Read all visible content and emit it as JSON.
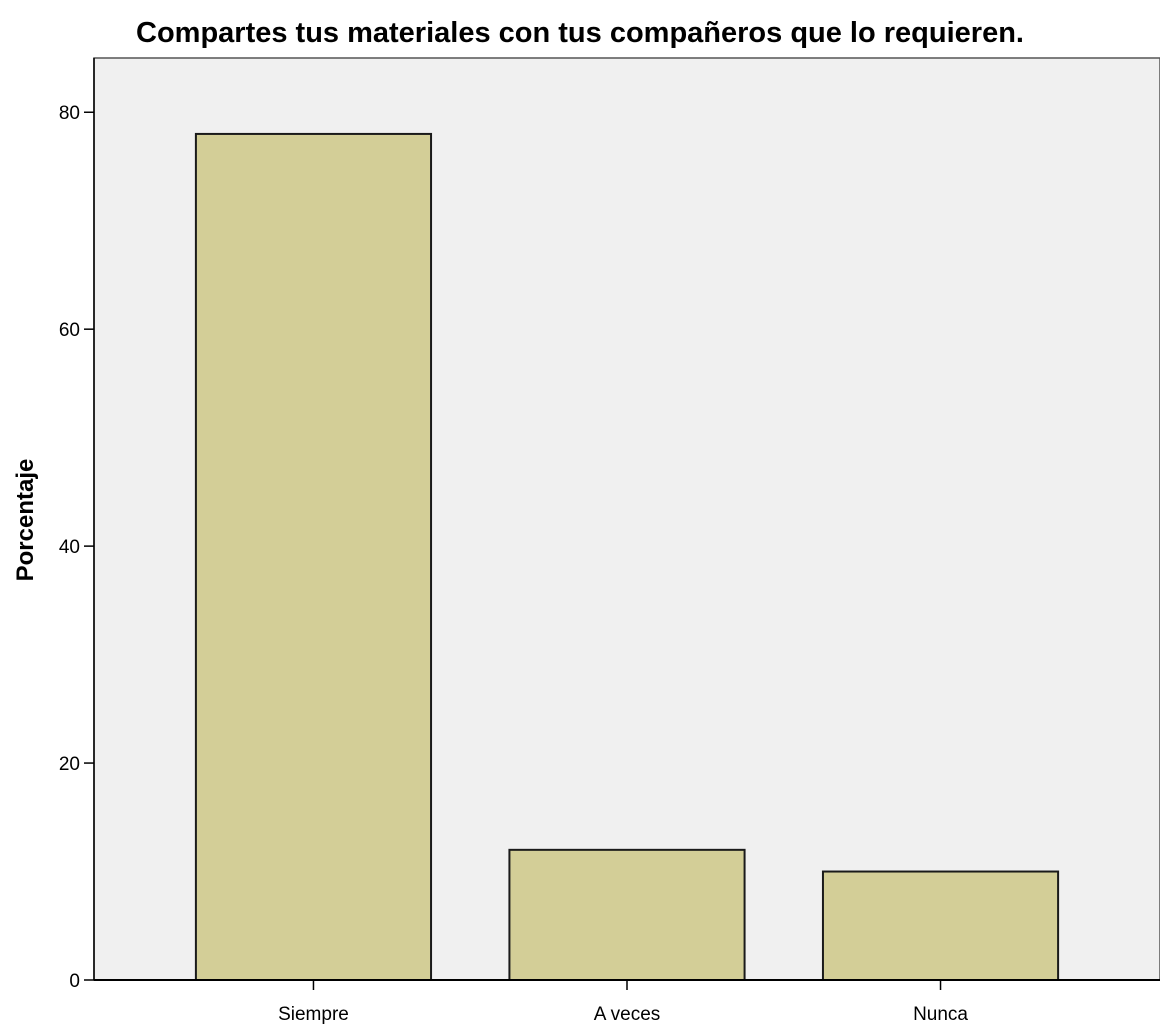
{
  "chart_data": {
    "type": "bar",
    "title": "Compartes tus materiales con tus compañeros que lo requieren.",
    "xlabel": "",
    "ylabel": "Porcentaje",
    "categories": [
      "Siempre",
      "A veces",
      "Nunca"
    ],
    "values": [
      78,
      12,
      10
    ],
    "ylim": [
      0,
      85
    ],
    "yticks": [
      "0",
      "20",
      "40",
      "60",
      "80"
    ],
    "grid": false,
    "legend": "none",
    "colors": {
      "bar_fill": "#d3ce97",
      "bar_stroke": "#1a1a1a",
      "plot_background": "#f0f0f0",
      "page_background": "#ffffff"
    }
  }
}
